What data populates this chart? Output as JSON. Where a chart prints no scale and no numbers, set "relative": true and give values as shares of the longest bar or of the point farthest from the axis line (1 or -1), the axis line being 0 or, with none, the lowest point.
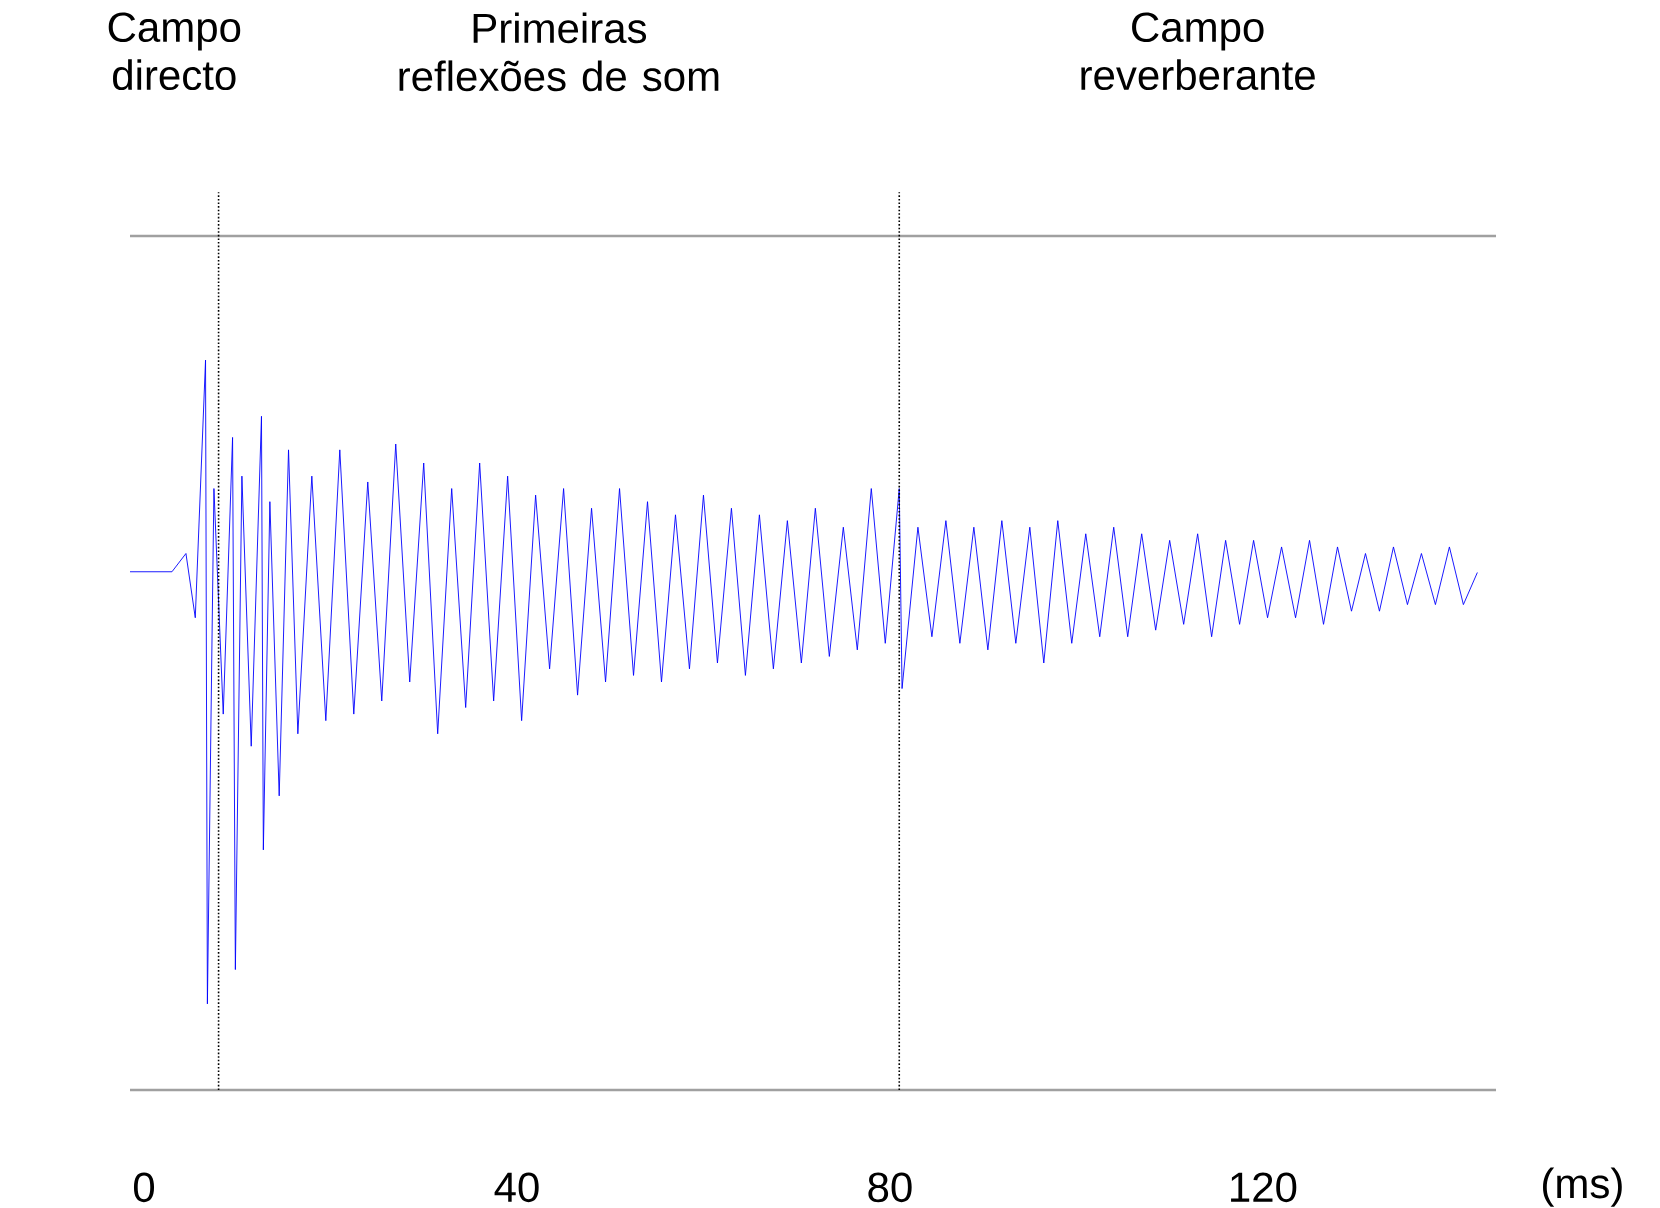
{
  "chart_data": {
    "type": "line",
    "relative": true,
    "x": [
      -1.5,
      3,
      4.5,
      5.5,
      6.6,
      6.8,
      7.5,
      8.5,
      9.5,
      9.8,
      10.5,
      11.5,
      12.6,
      12.8,
      13.5,
      14.5,
      15.5,
      16.5,
      18,
      19.5,
      21,
      22.5,
      24,
      25.5,
      27,
      28.5,
      30,
      31.5,
      33,
      34.5,
      36,
      37.5,
      39,
      40.5,
      42,
      43.5,
      45,
      46.5,
      48,
      49.5,
      51,
      52.5,
      54,
      55.5,
      57,
      58.5,
      60,
      61.5,
      63,
      64.5,
      66,
      67.5,
      69,
      70.5,
      72,
      73.5,
      75,
      76.5,
      78,
      79.5,
      81,
      81.3,
      83,
      84.5,
      86,
      87.5,
      89,
      90.5,
      92,
      93.5,
      95,
      96.5,
      98,
      99.5,
      101,
      102.5,
      104,
      105.5,
      107,
      108.5,
      110,
      111.5,
      113,
      114.5,
      116,
      117.5,
      119,
      120.5,
      122,
      123.5,
      125,
      126.5,
      128,
      129.5,
      131,
      132.5,
      134,
      135.5,
      137,
      138.5,
      140,
      141.5,
      143
    ],
    "series": [
      {
        "color": "#0000ff",
        "values": [
          0.71,
          0.71,
          0.735,
          0.647,
          1.0,
          0.118,
          0.824,
          0.515,
          0.894,
          0.165,
          0.841,
          0.471,
          0.923,
          0.329,
          0.806,
          0.403,
          0.877,
          0.488,
          0.841,
          0.506,
          0.877,
          0.515,
          0.833,
          0.533,
          0.885,
          0.559,
          0.859,
          0.488,
          0.824,
          0.524,
          0.859,
          0.533,
          0.841,
          0.506,
          0.815,
          0.577,
          0.824,
          0.541,
          0.797,
          0.559,
          0.824,
          0.568,
          0.806,
          0.559,
          0.788,
          0.577,
          0.815,
          0.585,
          0.797,
          0.568,
          0.788,
          0.577,
          0.78,
          0.585,
          0.797,
          0.594,
          0.771,
          0.603,
          0.824,
          0.612,
          0.824,
          0.55,
          0.771,
          0.621,
          0.78,
          0.612,
          0.771,
          0.603,
          0.78,
          0.612,
          0.771,
          0.585,
          0.78,
          0.612,
          0.762,
          0.621,
          0.771,
          0.621,
          0.762,
          0.63,
          0.753,
          0.638,
          0.762,
          0.621,
          0.753,
          0.638,
          0.753,
          0.647,
          0.744,
          0.647,
          0.753,
          0.638,
          0.744,
          0.656,
          0.735,
          0.656,
          0.744,
          0.665,
          0.735,
          0.665,
          0.744,
          0.665,
          0.709
        ]
      }
    ],
    "xlim": [
      -1.5,
      145
    ],
    "xticks": [
      0,
      40,
      80,
      120
    ],
    "xlabel": "(ms)",
    "ref_lines": [
      {
        "axis": "x",
        "value": 8,
        "line_style": "dotted",
        "color": "#000000"
      },
      {
        "axis": "x",
        "value": 81,
        "line_style": "dotted",
        "color": "#000000"
      }
    ],
    "annotations": [
      "Campo directo",
      "Primeiras reflexões de som",
      "Campo reverberante"
    ],
    "tick_labels": "x",
    "line_style": "solid",
    "marker": "none"
  }
}
